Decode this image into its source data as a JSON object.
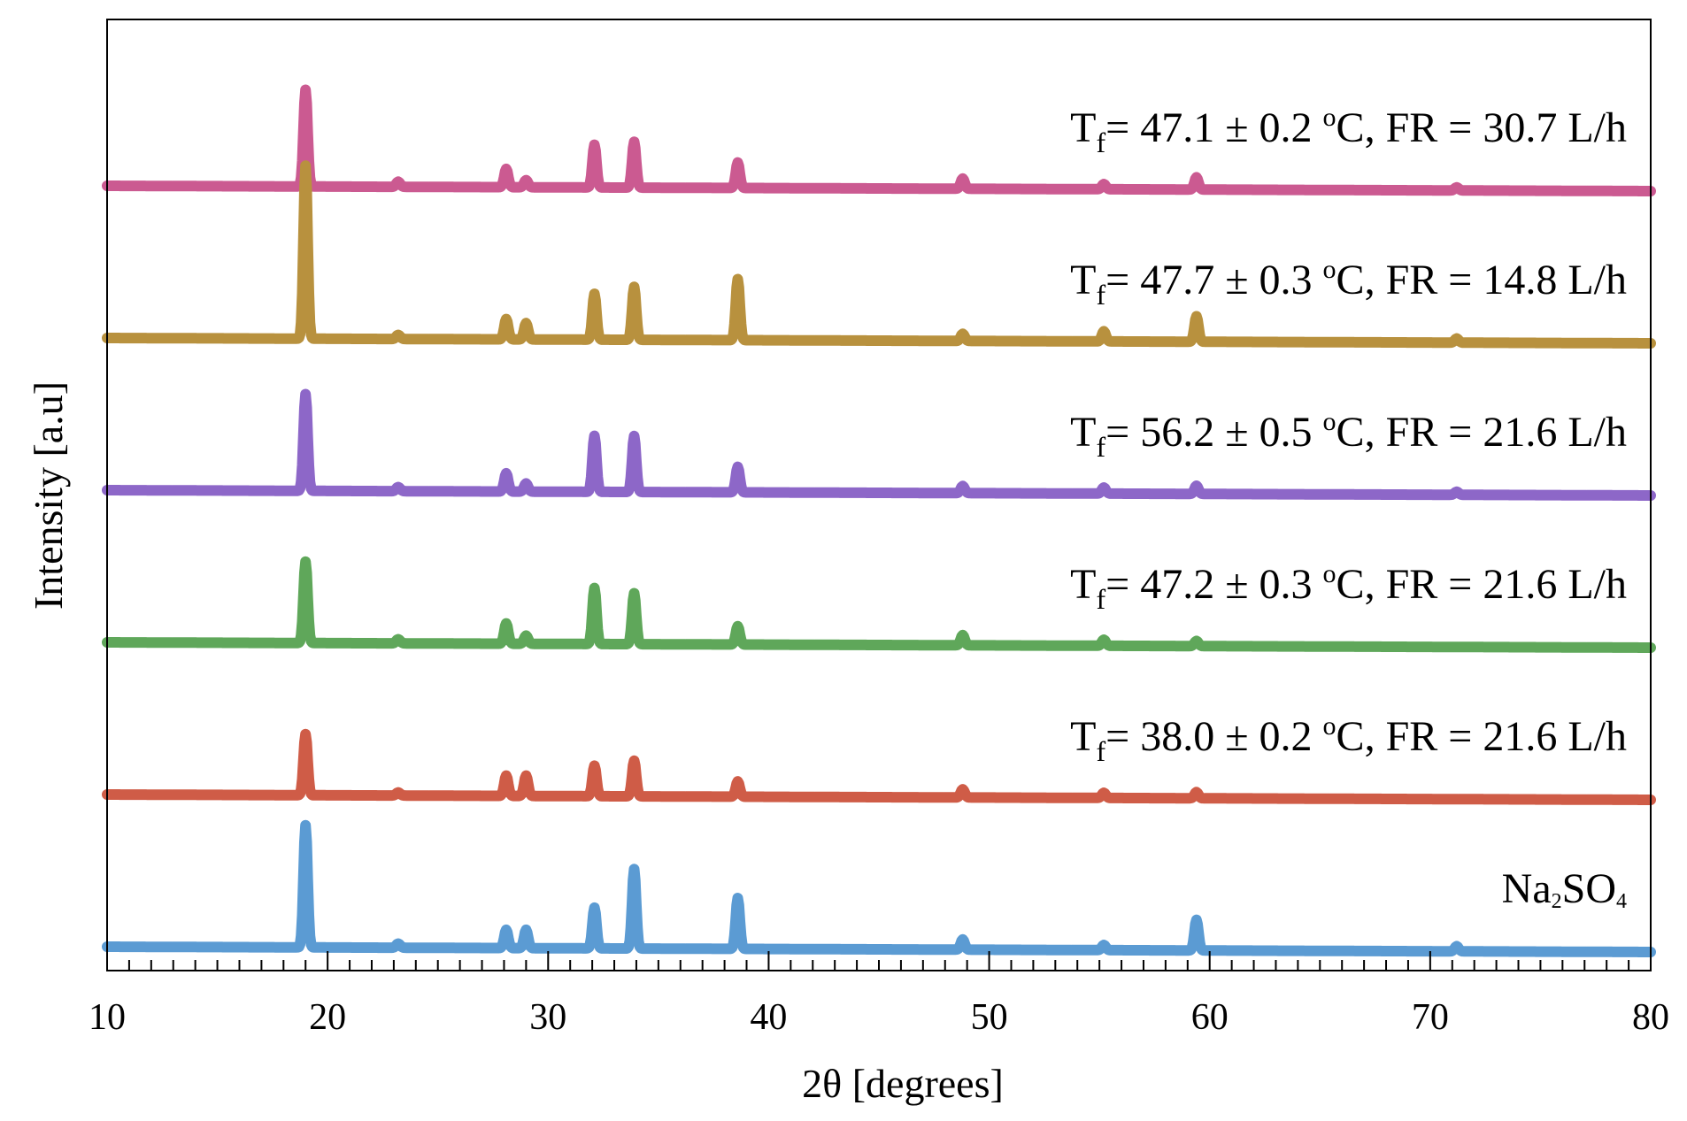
{
  "chart_data": {
    "type": "line",
    "title": "",
    "xlabel": "2θ [degrees]",
    "ylabel": "Intensity [a.u]",
    "xlim": [
      10,
      80
    ],
    "xticks": [
      10,
      20,
      30,
      40,
      50,
      60,
      70,
      80
    ],
    "minor_tick_step": 1,
    "grid": false,
    "legend": "inline labels, top-right of each trace",
    "series": [
      {
        "name": "Tf= 47.1 ± 0.2 oC, FR = 30.7 L/h",
        "label_main": "T",
        "label_sub": "f",
        "label_mid": "= 47.1 ± 0.2 ",
        "label_sup": "o",
        "label_end": "C, FR = 30.7 L/h",
        "color": "#cb5a91",
        "offset": 5,
        "peaks": [
          [
            19.0,
            0.95
          ],
          [
            23.2,
            0.05
          ],
          [
            28.1,
            0.18
          ],
          [
            29.0,
            0.07
          ],
          [
            32.1,
            0.42
          ],
          [
            33.9,
            0.45
          ],
          [
            38.6,
            0.25
          ],
          [
            48.8,
            0.1
          ],
          [
            55.2,
            0.05
          ],
          [
            59.4,
            0.12
          ],
          [
            71.2,
            0.03
          ]
        ]
      },
      {
        "name": "Tf= 47.7 ± 0.3 oC, FR = 14.8 L/h",
        "label_main": "T",
        "label_sub": "f",
        "label_mid": "= 47.7 ± 0.3 ",
        "label_sup": "o",
        "label_end": "C, FR = 14.8 L/h",
        "color": "#b8913e",
        "offset": 4,
        "peaks": [
          [
            19.0,
            1.7
          ],
          [
            23.2,
            0.04
          ],
          [
            28.1,
            0.2
          ],
          [
            29.0,
            0.16
          ],
          [
            32.1,
            0.45
          ],
          [
            33.9,
            0.52
          ],
          [
            38.6,
            0.6
          ],
          [
            48.8,
            0.07
          ],
          [
            55.2,
            0.1
          ],
          [
            59.4,
            0.25
          ],
          [
            71.2,
            0.04
          ]
        ]
      },
      {
        "name": "Tf= 56.2 ± 0.5 oC, FR = 21.6 L/h",
        "label_main": "T",
        "label_sub": "f",
        "label_mid": "= 56.2 ± 0.5 ",
        "label_sup": "o",
        "label_end": "C, FR = 21.6 L/h",
        "color": "#8d67c8",
        "offset": 3,
        "peaks": [
          [
            19.0,
            0.95
          ],
          [
            23.2,
            0.04
          ],
          [
            28.1,
            0.18
          ],
          [
            29.0,
            0.08
          ],
          [
            32.1,
            0.55
          ],
          [
            33.9,
            0.55
          ],
          [
            38.6,
            0.25
          ],
          [
            48.8,
            0.07
          ],
          [
            55.2,
            0.06
          ],
          [
            59.4,
            0.08
          ],
          [
            71.2,
            0.03
          ]
        ]
      },
      {
        "name": "Tf= 47.2 ± 0.3 oC, FR = 21.6 L/h",
        "label_main": "T",
        "label_sub": "f",
        "label_mid": "= 47.2 ± 0.3 ",
        "label_sup": "o",
        "label_end": "C, FR = 21.6 L/h",
        "color": "#5fa75a",
        "offset": 2,
        "peaks": [
          [
            19.0,
            0.8
          ],
          [
            23.2,
            0.04
          ],
          [
            28.1,
            0.2
          ],
          [
            29.0,
            0.08
          ],
          [
            32.1,
            0.55
          ],
          [
            33.9,
            0.5
          ],
          [
            38.6,
            0.18
          ],
          [
            48.8,
            0.1
          ],
          [
            55.2,
            0.06
          ],
          [
            59.4,
            0.05
          ]
        ]
      },
      {
        "name": "Tf= 38.0 ± 0.2 oC, FR = 21.6 L/h",
        "label_main": "T",
        "label_sub": "f",
        "label_mid": "= 38.0 ± 0.2 ",
        "label_sup": "o",
        "label_end": "C, FR = 21.6 L/h",
        "color": "#cf5c47",
        "offset": 1,
        "peaks": [
          [
            19.0,
            0.6
          ],
          [
            23.2,
            0.03
          ],
          [
            28.1,
            0.2
          ],
          [
            29.0,
            0.2
          ],
          [
            32.1,
            0.3
          ],
          [
            33.9,
            0.35
          ],
          [
            38.6,
            0.15
          ],
          [
            48.8,
            0.08
          ],
          [
            55.2,
            0.05
          ],
          [
            59.4,
            0.06
          ]
        ]
      },
      {
        "name": "Na2SO4",
        "label_main": "Na",
        "label_sub": "2",
        "label_mid": "SO",
        "label_sub2": "4",
        "color": "#5b9bd3",
        "offset": 0,
        "peaks": [
          [
            19.0,
            1.2
          ],
          [
            23.2,
            0.04
          ],
          [
            28.1,
            0.18
          ],
          [
            29.0,
            0.18
          ],
          [
            32.1,
            0.4
          ],
          [
            33.9,
            0.78
          ],
          [
            38.6,
            0.5
          ],
          [
            48.8,
            0.1
          ],
          [
            55.2,
            0.05
          ],
          [
            59.4,
            0.3
          ],
          [
            71.2,
            0.05
          ]
        ]
      }
    ]
  }
}
